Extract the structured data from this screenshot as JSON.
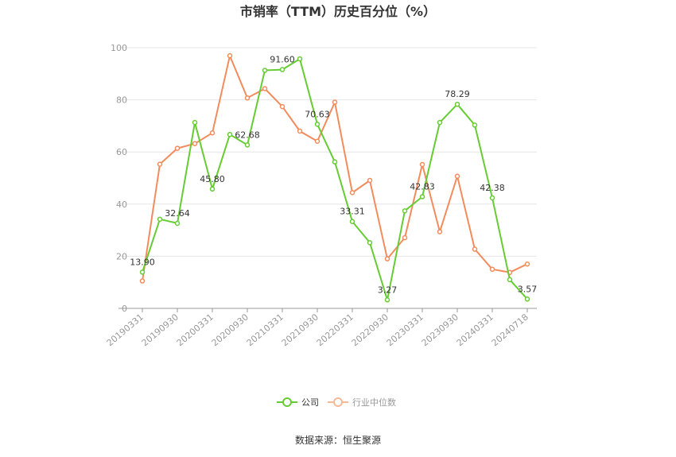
{
  "chart_data": {
    "type": "line",
    "title": "市销率（TTM）历史百分位（%）",
    "ylim": [
      0,
      100
    ],
    "yticks": [
      0,
      20,
      40,
      60,
      80,
      100
    ],
    "x": [
      "20190331",
      "20190630",
      "20190930",
      "20191231",
      "20200331",
      "20200630",
      "20200930",
      "20201231",
      "20210331",
      "20210630",
      "20210930",
      "20211231",
      "20220331",
      "20220630",
      "20220930",
      "20221231",
      "20230331",
      "20230630",
      "20230930",
      "20231231",
      "20240331",
      "20240630",
      "20240718"
    ],
    "xtick_labels": [
      "20190331",
      "20190930",
      "20200331",
      "20200930",
      "20210331",
      "20210930",
      "20220331",
      "20220930",
      "20230331",
      "20230930",
      "20240331",
      "20240718"
    ],
    "grid": true,
    "legend_position": "bottom",
    "series": [
      {
        "name": "公司",
        "color": "#66cc33",
        "values": [
          13.9,
          34.2,
          32.64,
          71.3,
          45.8,
          66.7,
          62.68,
          91.3,
          91.6,
          95.7,
          70.63,
          56.2,
          33.31,
          25.2,
          3.27,
          37.4,
          42.83,
          71.3,
          78.29,
          70.3,
          42.38,
          11.0,
          3.57
        ],
        "labels": {
          "0": "13.90",
          "2": "32.64",
          "4": "45.80",
          "6": "62.68",
          "8": "91.60",
          "10": "70.63",
          "12": "33.31",
          "14": "3.27",
          "16": "42.83",
          "18": "78.29",
          "20": "42.38",
          "22": "3.57"
        }
      },
      {
        "name": "行业中位数",
        "color": "#f28c5c",
        "values": [
          10.5,
          55.3,
          61.4,
          63.2,
          67.3,
          96.9,
          80.7,
          84.3,
          77.4,
          68.0,
          64.1,
          79.1,
          44.4,
          49.1,
          19.0,
          27.1,
          55.2,
          29.4,
          50.7,
          22.7,
          15.0,
          13.8,
          17.0
        ]
      }
    ]
  },
  "source_text": "数据来源：恒生聚源"
}
